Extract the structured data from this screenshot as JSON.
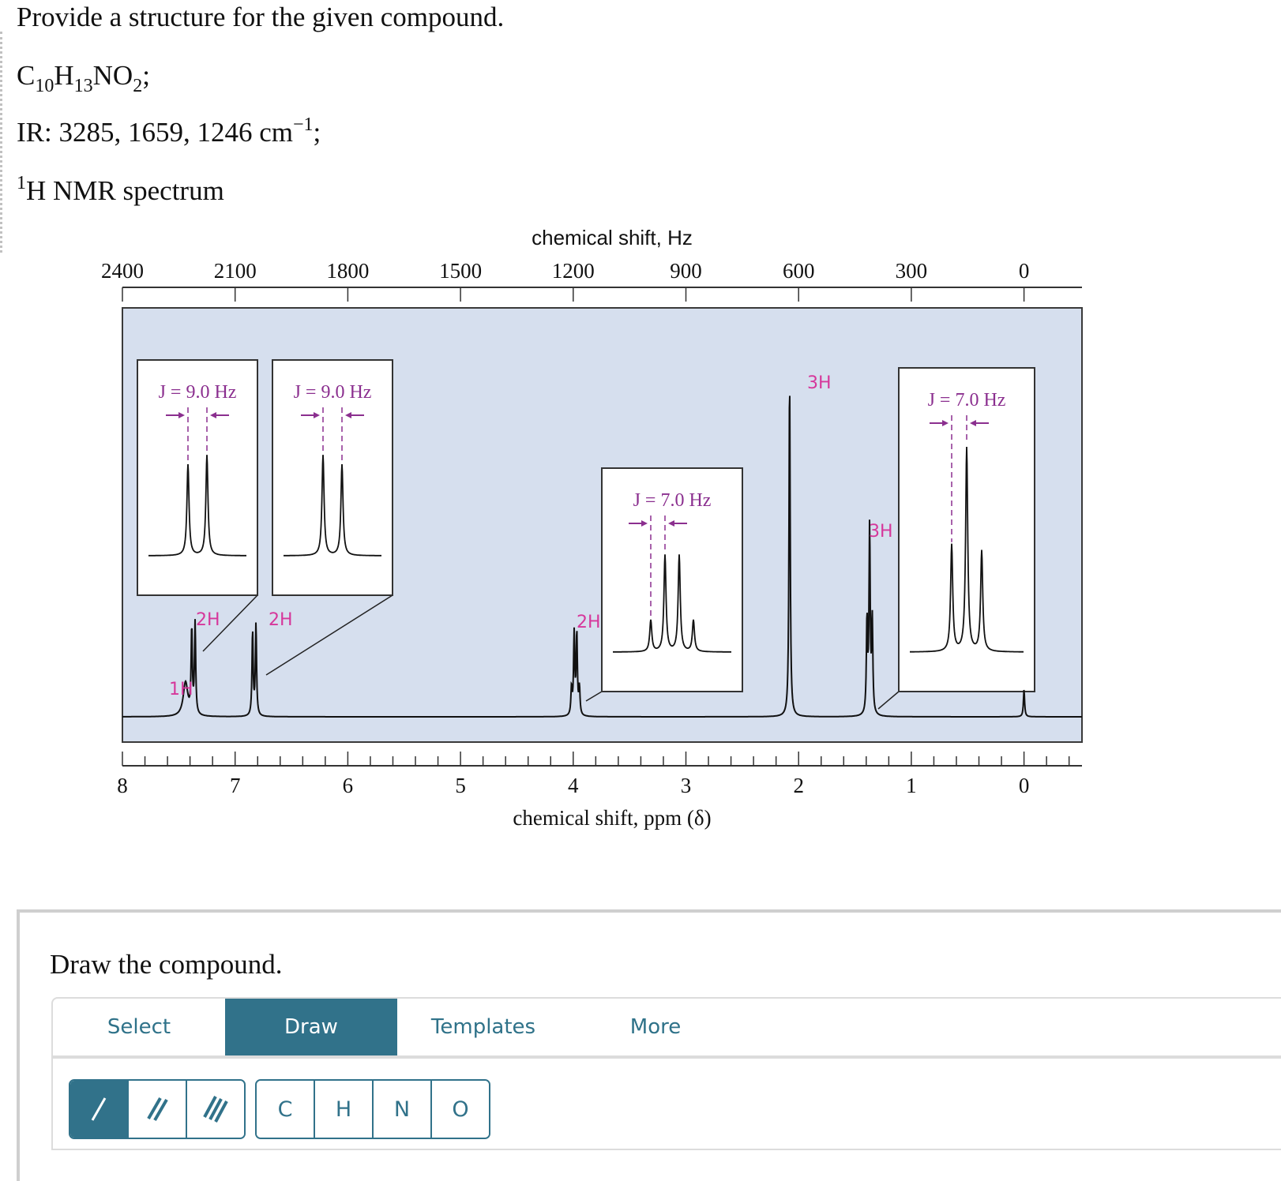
{
  "question": {
    "prompt": "Provide a structure for the given compound.",
    "formula": {
      "parts": [
        [
          "C",
          "10"
        ],
        [
          "H",
          "13"
        ],
        [
          "NO",
          "2"
        ]
      ],
      "suffix": ";"
    },
    "ir": {
      "label": "IR: 3285, 1659, 1246 cm",
      "exponent": "−1",
      "suffix": ";"
    },
    "nmr": {
      "superscript": "1",
      "label": "H NMR spectrum"
    }
  },
  "chart_data": {
    "type": "line",
    "title": "1H NMR spectrum",
    "xlabel": "chemical shift, ppm (δ)",
    "x2label": "chemical shift, Hz",
    "xlim": [
      8,
      0
    ],
    "x_ticks": [
      "8",
      "7",
      "6",
      "5",
      "4",
      "3",
      "2",
      "1",
      "0"
    ],
    "x2_ticks": [
      "2400",
      "2100",
      "1800",
      "1500",
      "1200",
      "900",
      "600",
      "300",
      "0"
    ],
    "background_color": "#d6dfee",
    "label_color": "#d6379b",
    "j_color": "#8b2f8f",
    "peaks": [
      {
        "ppm": 7.44,
        "integration": "1H",
        "multiplicity": "broad singlet",
        "rel_height": 0.1
      },
      {
        "ppm": 7.37,
        "integration": "2H",
        "multiplicity": "doublet",
        "J": "J = 9.0 Hz",
        "rel_height": 0.27
      },
      {
        "ppm": 6.83,
        "integration": "2H",
        "multiplicity": "doublet",
        "J": "J = 9.0 Hz",
        "rel_height": 0.27
      },
      {
        "ppm": 3.98,
        "integration": "2H",
        "multiplicity": "quartet",
        "J": "J = 7.0 Hz",
        "rel_height": 0.24
      },
      {
        "ppm": 2.08,
        "integration": "3H",
        "multiplicity": "singlet",
        "rel_height": 1.0
      },
      {
        "ppm": 1.37,
        "integration": "3H",
        "multiplicity": "triplet",
        "J": "J = 7.0 Hz",
        "rel_height": 0.55
      },
      {
        "ppm": 0.0,
        "integration": "",
        "multiplicity": "TMS reference",
        "rel_height": 0.08
      }
    ],
    "insets": [
      {
        "for_ppm": 7.37,
        "label": "J = 9.0 Hz",
        "pattern": "doublet"
      },
      {
        "for_ppm": 6.83,
        "label": "J = 9.0 Hz",
        "pattern": "doublet"
      },
      {
        "for_ppm": 3.98,
        "label": "J = 7.0 Hz",
        "pattern": "quartet"
      },
      {
        "for_ppm": 1.37,
        "label": "J = 7.0 Hz",
        "pattern": "triplet"
      }
    ],
    "integration_labels": [
      "1H",
      "2H",
      "2H",
      "2H",
      "3H",
      "3H"
    ]
  },
  "draw_panel": {
    "title": "Draw the compound.",
    "tabs": [
      {
        "label": "Select",
        "active": false
      },
      {
        "label": "Draw",
        "active": true
      },
      {
        "label": "Templates",
        "active": false
      },
      {
        "label": "More",
        "active": false
      }
    ],
    "bond_tools": [
      "single-bond",
      "double-bond",
      "triple-bond"
    ],
    "atom_tools": [
      "C",
      "H",
      "N",
      "O"
    ],
    "accent_color": "#31728a"
  }
}
